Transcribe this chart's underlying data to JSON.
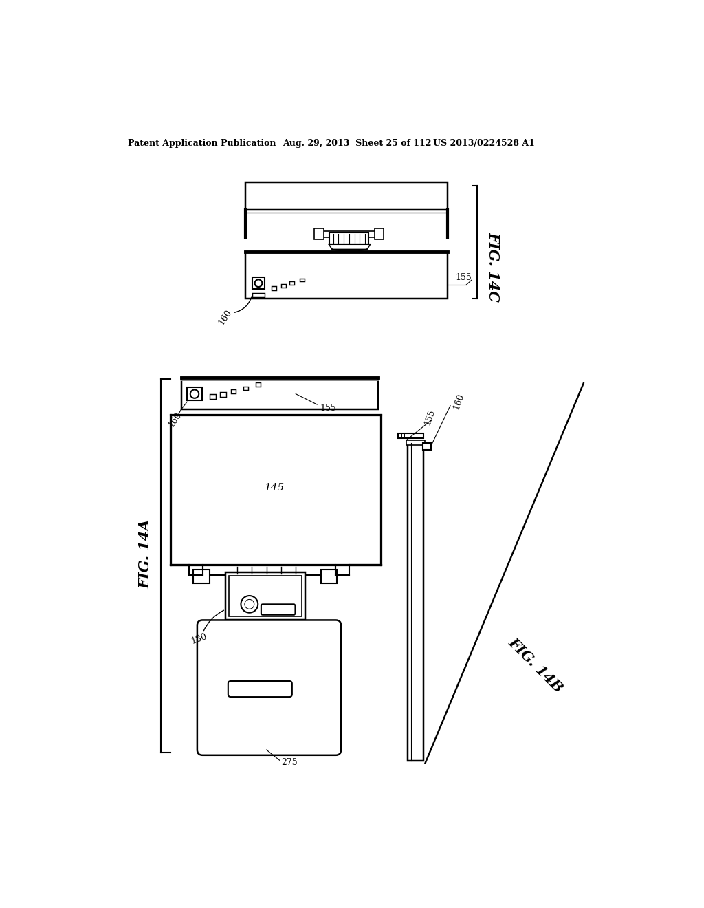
{
  "bg_color": "#ffffff",
  "header_left": "Patent Application Publication",
  "header_center": "Aug. 29, 2013  Sheet 25 of 112",
  "header_right": "US 2013/0224528 A1",
  "fig14c_label": "FIG. 14C",
  "fig14a_label": "FIG. 14A",
  "fig14b_label": "FIG. 14B",
  "label_155_14c": "155",
  "label_160_14c": "160",
  "label_145": "145",
  "label_155_14a": "155",
  "label_160_14a": "160",
  "label_180": "180",
  "label_275": "275",
  "label_155_14b": "155",
  "label_160_14b": "160",
  "line_color": "#000000",
  "line_width": 1.5
}
